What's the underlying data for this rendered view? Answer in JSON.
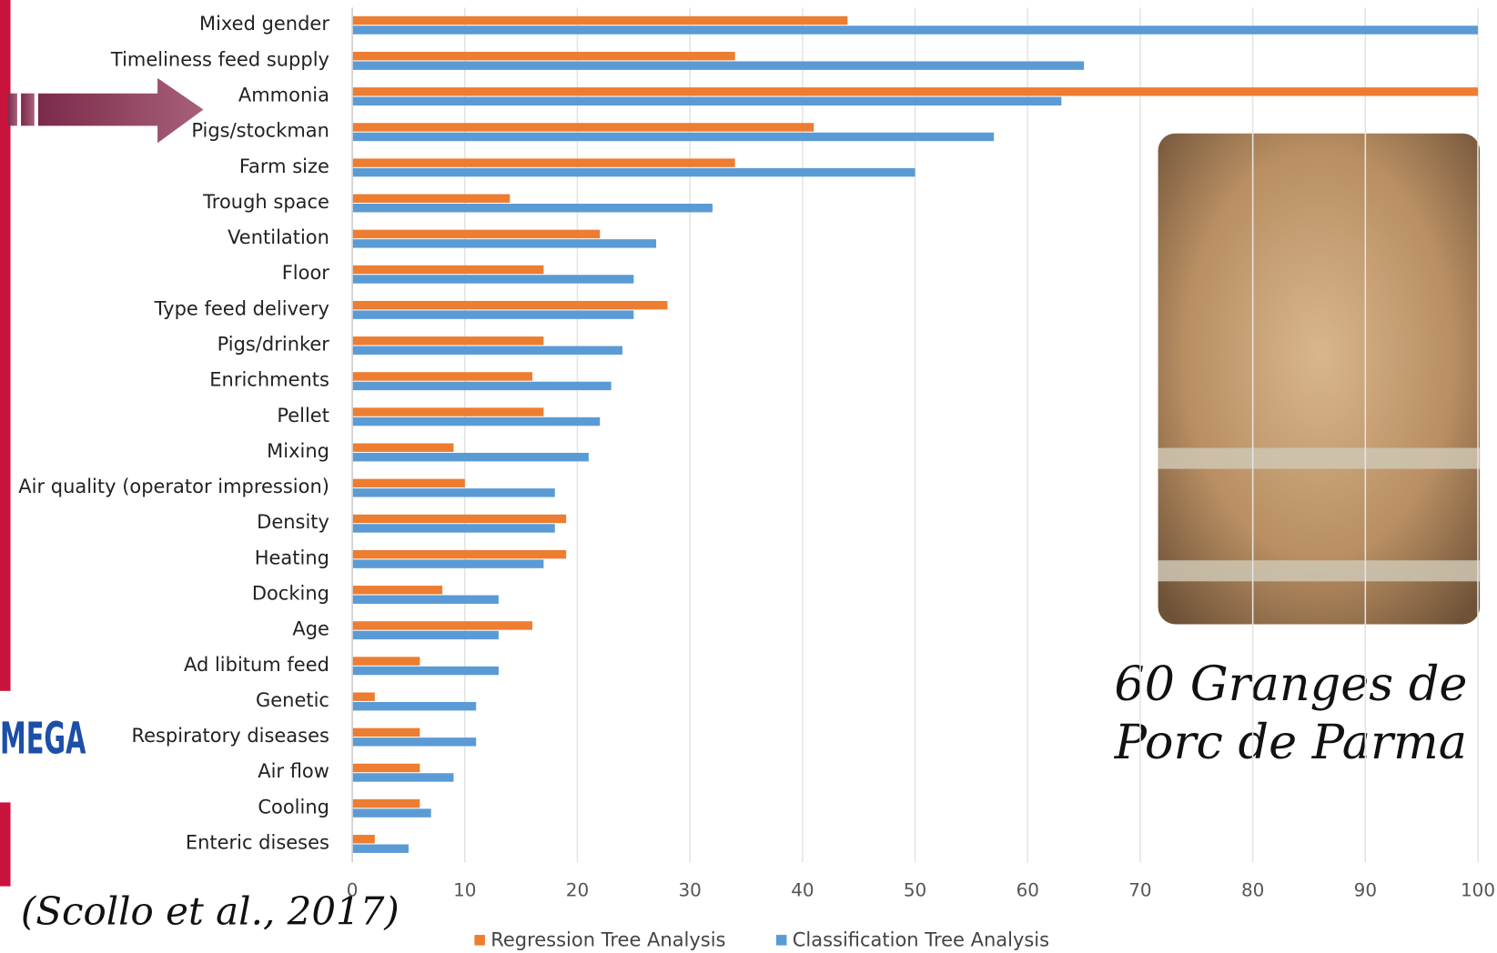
{
  "chart_data": {
    "type": "barh",
    "categories": [
      "Mixed gender",
      "Timeliness feed supply",
      "Ammonia",
      "Pigs/stockman",
      "Farm size",
      "Trough space",
      "Ventilation",
      "Floor",
      "Type feed delivery",
      "Pigs/drinker",
      "Enrichments",
      "Pellet",
      "Mixing",
      "Air quality (operator impression)",
      "Density",
      "Heating",
      "Docking",
      "Age",
      "Ad libitum feed",
      "Genetic",
      "Respiratory diseases",
      "Air flow",
      "Cooling",
      "Enteric diseses"
    ],
    "series": [
      {
        "name": "Regression Tree Analysis",
        "color": "#ed7d31",
        "values": [
          44,
          34,
          100,
          41,
          34,
          14,
          22,
          17,
          28,
          17,
          16,
          17,
          9,
          10,
          19,
          19,
          8,
          16,
          6,
          2,
          6,
          6,
          6,
          2
        ]
      },
      {
        "name": "Classification Tree Analysis",
        "color": "#5b9bd5",
        "values": [
          100,
          65,
          63,
          57,
          50,
          32,
          27,
          25,
          25,
          24,
          23,
          22,
          21,
          18,
          18,
          17,
          13,
          13,
          13,
          11,
          11,
          9,
          7,
          5
        ]
      }
    ],
    "xlim": [
      0,
      100
    ],
    "xticks": [
      0,
      10,
      20,
      30,
      40,
      50,
      60,
      70,
      80,
      90,
      100
    ],
    "grid": true,
    "annotations": [
      "60 Granges de",
      "Porc de Parma",
      "(Scollo et al., 2017)"
    ],
    "logo_text": "MEGA"
  }
}
